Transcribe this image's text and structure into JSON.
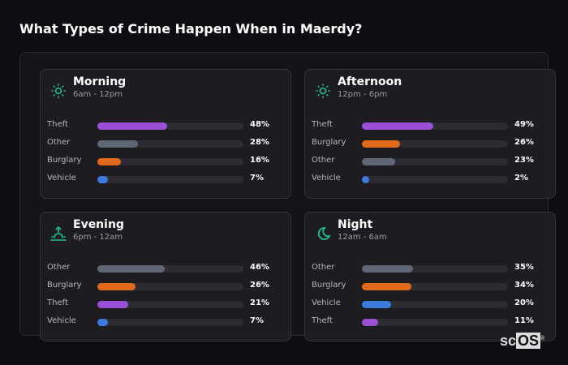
{
  "title": "What Types of Crime Happen When in Maerdy?",
  "colors": {
    "Theft": "#9b4fd6",
    "Other": "#5f6675",
    "Burglary": "#e0691c",
    "Vehicle": "#3b7bdc",
    "accent": "#1fc28f"
  },
  "cards": [
    {
      "name": "Morning",
      "time": "6am - 12pm",
      "icon": "sun-icon",
      "rows": [
        {
          "label": "Theft",
          "value": 48,
          "pct": "48%"
        },
        {
          "label": "Other",
          "value": 28,
          "pct": "28%"
        },
        {
          "label": "Burglary",
          "value": 16,
          "pct": "16%"
        },
        {
          "label": "Vehicle",
          "value": 7,
          "pct": "7%"
        }
      ]
    },
    {
      "name": "Afternoon",
      "time": "12pm - 6pm",
      "icon": "sun-icon",
      "rows": [
        {
          "label": "Theft",
          "value": 49,
          "pct": "49%"
        },
        {
          "label": "Burglary",
          "value": 26,
          "pct": "26%"
        },
        {
          "label": "Other",
          "value": 23,
          "pct": "23%"
        },
        {
          "label": "Vehicle",
          "value": 2,
          "pct": "2%"
        }
      ]
    },
    {
      "name": "Evening",
      "time": "6pm - 12am",
      "icon": "sunset-icon",
      "rows": [
        {
          "label": "Other",
          "value": 46,
          "pct": "46%"
        },
        {
          "label": "Burglary",
          "value": 26,
          "pct": "26%"
        },
        {
          "label": "Theft",
          "value": 21,
          "pct": "21%"
        },
        {
          "label": "Vehicle",
          "value": 7,
          "pct": "7%"
        }
      ]
    },
    {
      "name": "Night",
      "time": "12am - 6am",
      "icon": "moon-icon",
      "rows": [
        {
          "label": "Other",
          "value": 35,
          "pct": "35%"
        },
        {
          "label": "Burglary",
          "value": 34,
          "pct": "34%"
        },
        {
          "label": "Vehicle",
          "value": 20,
          "pct": "20%"
        },
        {
          "label": "Theft",
          "value": 11,
          "pct": "11%"
        }
      ]
    }
  ],
  "logo": "scOS"
}
